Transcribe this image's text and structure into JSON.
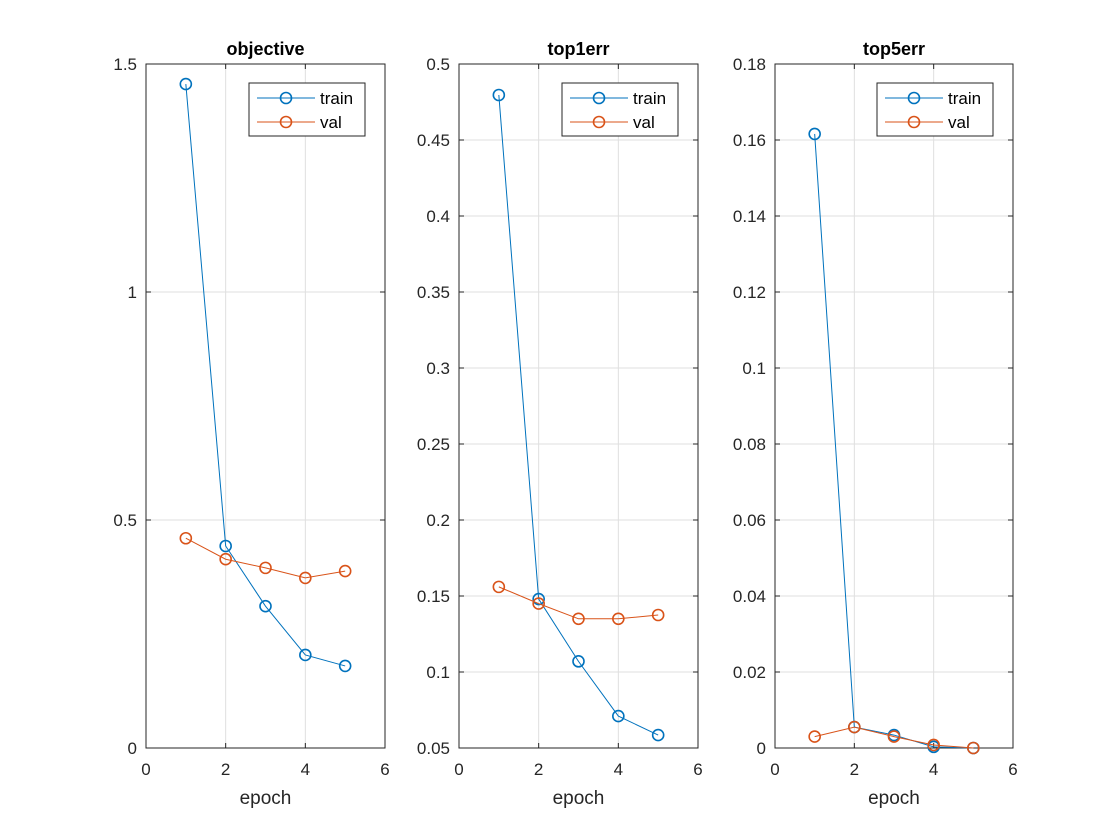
{
  "figure": {
    "background": "#ffffff"
  },
  "chart_data": [
    {
      "type": "line",
      "title": "objective",
      "xlabel": "epoch",
      "ylabel": "",
      "xlim": [
        0,
        6
      ],
      "ylim": [
        0,
        1.5
      ],
      "xticks": [
        0,
        2,
        4,
        6
      ],
      "xtick_labels": [
        "0",
        "2",
        "4",
        "6"
      ],
      "yticks": [
        0,
        0.5,
        1,
        1.5
      ],
      "ytick_labels": [
        "0",
        "0.5",
        "1",
        "1.5"
      ],
      "grid": true,
      "legend_position": "top-right",
      "x": [
        1,
        2,
        3,
        4,
        5
      ],
      "series": [
        {
          "name": "train",
          "color": "#0072BD",
          "marker": "circle",
          "values": [
            1.456,
            0.443,
            0.311,
            0.204,
            0.18
          ]
        },
        {
          "name": "val",
          "color": "#D95319",
          "marker": "circle",
          "values": [
            0.46,
            0.414,
            0.395,
            0.373,
            0.388
          ]
        }
      ]
    },
    {
      "type": "line",
      "title": "top1err",
      "xlabel": "epoch",
      "ylabel": "",
      "xlim": [
        0,
        6
      ],
      "ylim": [
        0.05,
        0.5
      ],
      "xticks": [
        0,
        2,
        4,
        6
      ],
      "xtick_labels": [
        "0",
        "2",
        "4",
        "6"
      ],
      "yticks": [
        0.05,
        0.1,
        0.15,
        0.2,
        0.25,
        0.3,
        0.35,
        0.4,
        0.45,
        0.5
      ],
      "ytick_labels": [
        "0.05",
        "0.1",
        "0.15",
        "0.2",
        "0.25",
        "0.3",
        "0.35",
        "0.4",
        "0.45",
        "0.5"
      ],
      "grid": true,
      "legend_position": "top-right",
      "x": [
        1,
        2,
        3,
        4,
        5
      ],
      "series": [
        {
          "name": "train",
          "color": "#0072BD",
          "marker": "circle",
          "values": [
            0.4796,
            0.148,
            0.107,
            0.071,
            0.0585
          ]
        },
        {
          "name": "val",
          "color": "#D95319",
          "marker": "circle",
          "values": [
            0.156,
            0.145,
            0.135,
            0.135,
            0.1375
          ]
        }
      ]
    },
    {
      "type": "line",
      "title": "top5err",
      "xlabel": "epoch",
      "ylabel": "",
      "xlim": [
        0,
        6
      ],
      "ylim": [
        0,
        0.18
      ],
      "xticks": [
        0,
        2,
        4,
        6
      ],
      "xtick_labels": [
        "0",
        "2",
        "4",
        "6"
      ],
      "yticks": [
        0,
        0.02,
        0.04,
        0.06,
        0.08,
        0.1,
        0.12,
        0.14,
        0.16,
        0.18
      ],
      "ytick_labels": [
        "0",
        "0.02",
        "0.04",
        "0.06",
        "0.08",
        "0.1",
        "0.12",
        "0.14",
        "0.16",
        "0.18"
      ],
      "grid": true,
      "legend_position": "top-right",
      "x": [
        1,
        2,
        3,
        4,
        5
      ],
      "series": [
        {
          "name": "train",
          "color": "#0072BD",
          "marker": "circle",
          "values": [
            0.1616,
            0.0055,
            0.0034,
            0.0003,
            0.0
          ]
        },
        {
          "name": "val",
          "color": "#D95319",
          "marker": "circle",
          "values": [
            0.003,
            0.0055,
            0.003,
            0.0008,
            0.0
          ]
        }
      ]
    }
  ]
}
